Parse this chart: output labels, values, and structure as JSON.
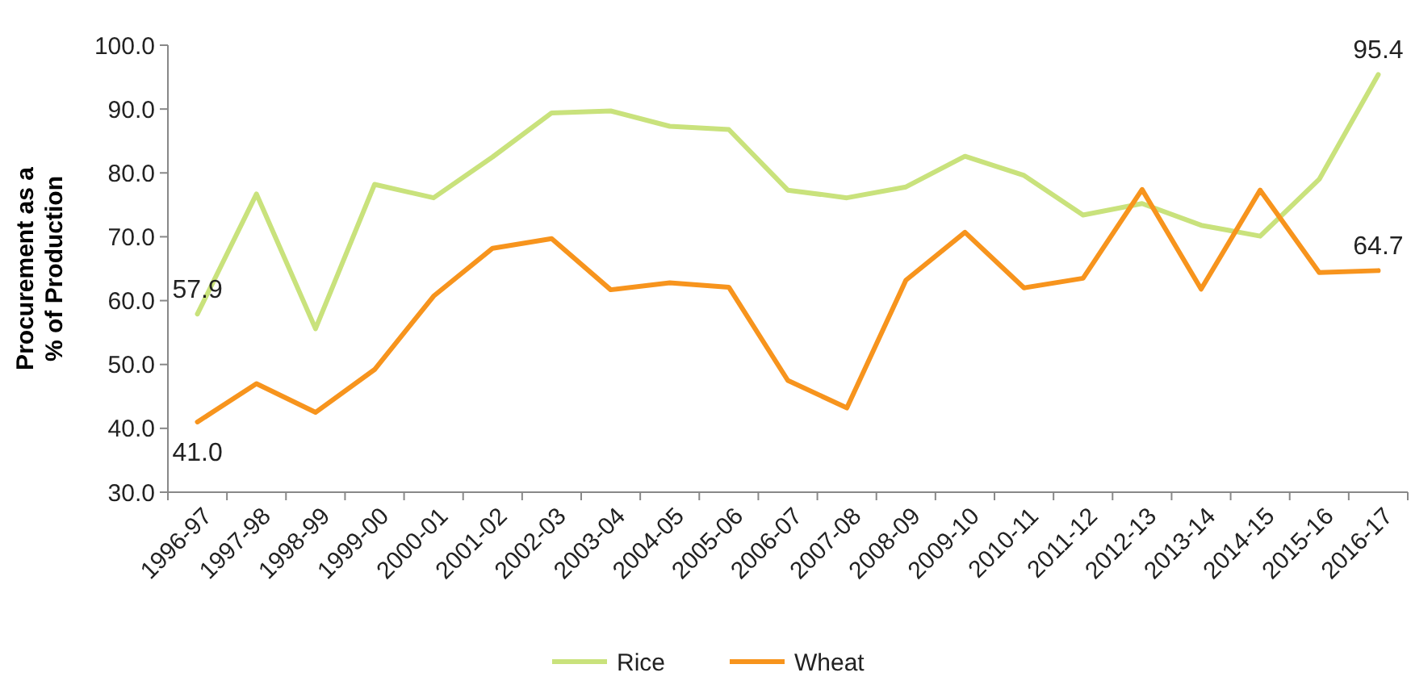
{
  "chart_data": {
    "type": "line",
    "ylabel": "Procurement as a\n% of Production",
    "categories": [
      "1996-97",
      "1997-98",
      "1998-99",
      "1999-00",
      "2000-01",
      "2001-02",
      "2002-03",
      "2003-04",
      "2004-05",
      "2005-06",
      "2006-07",
      "2007-08",
      "2008-09",
      "2009-10",
      "2010-11",
      "2011-12",
      "2012-13",
      "2013-14",
      "2014-15",
      "2015-16",
      "2016-17"
    ],
    "series": [
      {
        "name": "Rice",
        "color": "#c9e27c",
        "values": [
          57.9,
          76.7,
          55.6,
          78.2,
          76.1,
          82.5,
          89.4,
          89.7,
          87.3,
          86.8,
          77.3,
          76.1,
          77.8,
          82.6,
          79.6,
          73.4,
          75.2,
          71.8,
          70.1,
          79.0,
          95.4
        ],
        "value_labels": [
          "57.9",
          null,
          null,
          null,
          null,
          null,
          null,
          null,
          null,
          null,
          null,
          null,
          null,
          null,
          null,
          null,
          null,
          null,
          null,
          null,
          "95.4"
        ]
      },
      {
        "name": "Wheat",
        "color": "#f7941d",
        "values": [
          41.0,
          47.0,
          42.5,
          49.2,
          60.7,
          68.2,
          69.7,
          61.7,
          62.8,
          62.1,
          47.5,
          43.2,
          63.2,
          70.7,
          62.0,
          63.5,
          77.4,
          61.8,
          77.3,
          64.4,
          64.7
        ],
        "value_labels": [
          "41.0",
          null,
          null,
          null,
          null,
          null,
          null,
          null,
          null,
          null,
          null,
          null,
          null,
          null,
          null,
          null,
          null,
          null,
          null,
          null,
          "64.7"
        ]
      }
    ],
    "ylim": [
      30,
      100
    ],
    "yticks": [
      {
        "value": 30,
        "label": "30.0"
      },
      {
        "value": 40,
        "label": "40.0"
      },
      {
        "value": 50,
        "label": "50.0"
      },
      {
        "value": 60,
        "label": "60.0"
      },
      {
        "value": 70,
        "label": "70.0"
      },
      {
        "value": 80,
        "label": "80.0"
      },
      {
        "value": 90,
        "label": "90.0"
      },
      {
        "value": 100,
        "label": "100.0"
      }
    ],
    "legend": "bottom",
    "marker": "none",
    "line_style": "solid"
  }
}
